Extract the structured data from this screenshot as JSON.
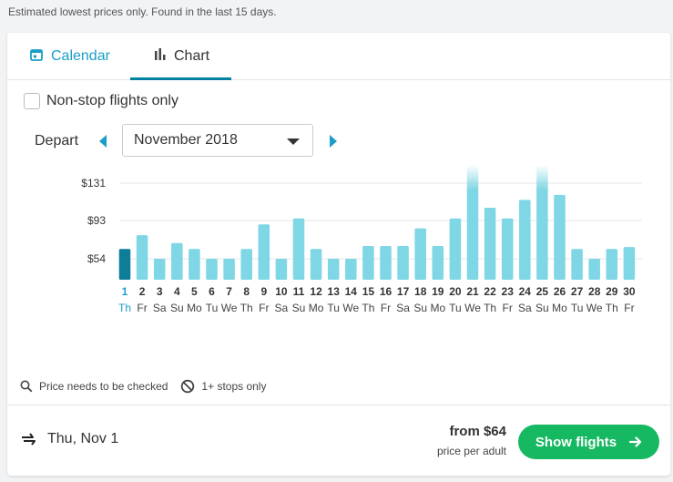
{
  "notice": "Estimated lowest prices only. Found in the last 15 days.",
  "tabs": [
    {
      "label": "Calendar",
      "icon": "calendar-icon",
      "active": false
    },
    {
      "label": "Chart",
      "icon": "bar-chart-icon",
      "active": true
    }
  ],
  "filters": {
    "nonstop_label": "Non-stop flights only",
    "nonstop_checked": false
  },
  "depart": {
    "label": "Depart",
    "month": "November 2018"
  },
  "colors": {
    "accent": "#1a9ec6",
    "bar": "#7fd6e4",
    "bar_selected": "#0e7d98",
    "button": "#16b862"
  },
  "chart_data": {
    "type": "bar",
    "y_ticks": [
      "$131",
      "$93",
      "$54"
    ],
    "y_tick_values": [
      131,
      93,
      54
    ],
    "days": [
      "1",
      "2",
      "3",
      "4",
      "5",
      "6",
      "7",
      "8",
      "9",
      "10",
      "11",
      "12",
      "13",
      "14",
      "15",
      "16",
      "17",
      "18",
      "19",
      "20",
      "21",
      "22",
      "23",
      "24",
      "25",
      "26",
      "27",
      "28",
      "29",
      "30"
    ],
    "weekdays": [
      "Th",
      "Fr",
      "Sa",
      "Su",
      "Mo",
      "Tu",
      "We",
      "Th",
      "Fr",
      "Sa",
      "Su",
      "Mo",
      "Tu",
      "We",
      "Th",
      "Fr",
      "Sa",
      "Su",
      "Mo",
      "Tu",
      "We",
      "Th",
      "Fr",
      "Sa",
      "Su",
      "Mo",
      "Tu",
      "We",
      "Th",
      "Fr"
    ],
    "values": [
      64,
      78,
      54,
      70,
      64,
      54,
      54,
      64,
      89,
      54,
      95,
      64,
      54,
      54,
      67,
      67,
      67,
      85,
      67,
      95,
      160,
      106,
      95,
      114,
      160,
      119,
      64,
      54,
      64,
      66
    ],
    "faded_top": [
      false,
      false,
      false,
      false,
      false,
      false,
      false,
      false,
      false,
      false,
      false,
      false,
      false,
      false,
      false,
      false,
      false,
      false,
      false,
      false,
      true,
      false,
      false,
      false,
      true,
      false,
      false,
      false,
      false,
      false
    ],
    "selected_index": 0
  },
  "legend": [
    {
      "icon": "magnifier-icon",
      "label": "Price needs to be checked"
    },
    {
      "icon": "no-entry-icon",
      "label": "1+ stops only"
    }
  ],
  "footer": {
    "date": "Thu, Nov 1",
    "price_from": "from $64",
    "price_sub": "price per adult",
    "button_label": "Show flights"
  }
}
